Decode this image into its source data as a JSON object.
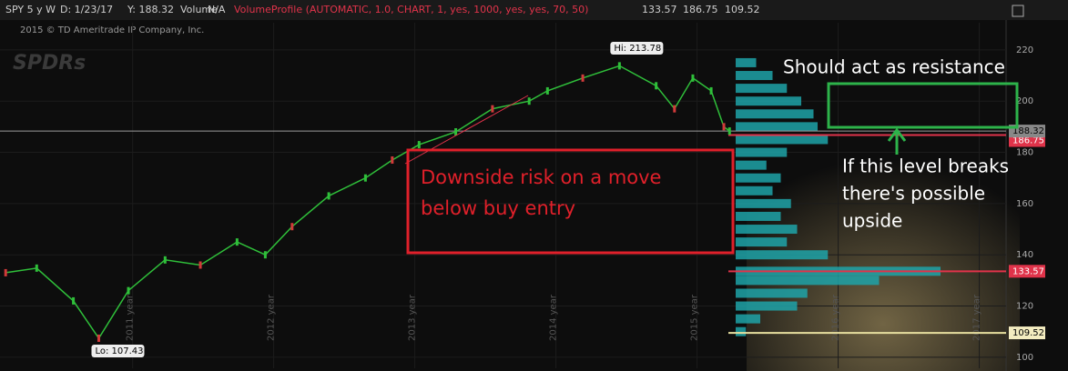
{
  "header": {
    "symbol": "SPY 5 y W",
    "date": "D: 1/23/17",
    "y": "Y: 188.32",
    "study": "Volume",
    "study_value": "N/A",
    "profile": "VolumeProfile (AUTOMATIC, 1.0, CHART, 1, yes, 1000, yes, yes, 70, 50)",
    "profile_values": [
      "133.57",
      "186.75",
      "109.52"
    ]
  },
  "copyright": "2015 © TD Ameritrade IP Company, Inc.",
  "logo": "SPDRs",
  "chart_data": {
    "type": "line",
    "color": "#2fbf3a",
    "x": [
      2010.1,
      2010.32,
      2010.58,
      2010.76,
      2010.97,
      2011.23,
      2011.48,
      2011.74,
      2011.94,
      2012.13,
      2012.39,
      2012.65,
      2012.84,
      2013.03,
      2013.29,
      2013.55,
      2013.81,
      2013.94,
      2014.19,
      2014.45,
      2014.71,
      2014.84,
      2014.97,
      2015.1,
      2015.19,
      2015.23
    ],
    "values": [
      133,
      134.8,
      122,
      107.43,
      126,
      138,
      136,
      145,
      140,
      151,
      163,
      170,
      177,
      183,
      188,
      197,
      200,
      204,
      209,
      213.78,
      206,
      197,
      209,
      204,
      190,
      188.32
    ],
    "xlim": [
      2010.06,
      2017.19
    ],
    "xticks": [
      {
        "value": 2011,
        "label": "2011 year"
      },
      {
        "value": 2012,
        "label": "2012 year"
      },
      {
        "value": 2013,
        "label": "2013 year"
      },
      {
        "value": 2014,
        "label": "2014 year"
      },
      {
        "value": 2015,
        "label": "2015 year"
      },
      {
        "value": 2016,
        "label": "2016 year"
      },
      {
        "value": 2017,
        "label": "2017 year"
      }
    ],
    "ylim": [
      95.7,
      230.6
    ],
    "yticks": [
      100,
      120,
      140,
      160,
      180,
      200,
      220
    ],
    "levels": [
      {
        "value": 188.32,
        "color": "#9a9a9a"
      },
      {
        "value": 186.75,
        "color": "#e0334a"
      },
      {
        "value": 133.57,
        "color": "#e0334a"
      },
      {
        "value": 109.52,
        "color": "#e8e0a0"
      }
    ],
    "hi_label": "Hi: 213.78",
    "lo_label": "Lo: 107.43",
    "volume_profile": {
      "color": "#1fa3a8",
      "levels": [
        110,
        115,
        120,
        125,
        130,
        133.57,
        140,
        145,
        150,
        155,
        160,
        165,
        170,
        175,
        180,
        185,
        190,
        195,
        200,
        205,
        210,
        215
      ],
      "values": [
        5,
        12,
        30,
        35,
        70,
        100,
        45,
        25,
        30,
        22,
        27,
        18,
        22,
        15,
        25,
        45,
        40,
        38,
        32,
        25,
        18,
        10
      ]
    }
  },
  "annotations": {
    "downside": [
      "Downside risk on a move",
      "below buy entry"
    ],
    "resistance": "Should act as resistance",
    "upside": [
      "If this level breaks",
      "there's possible",
      "upside"
    ]
  }
}
